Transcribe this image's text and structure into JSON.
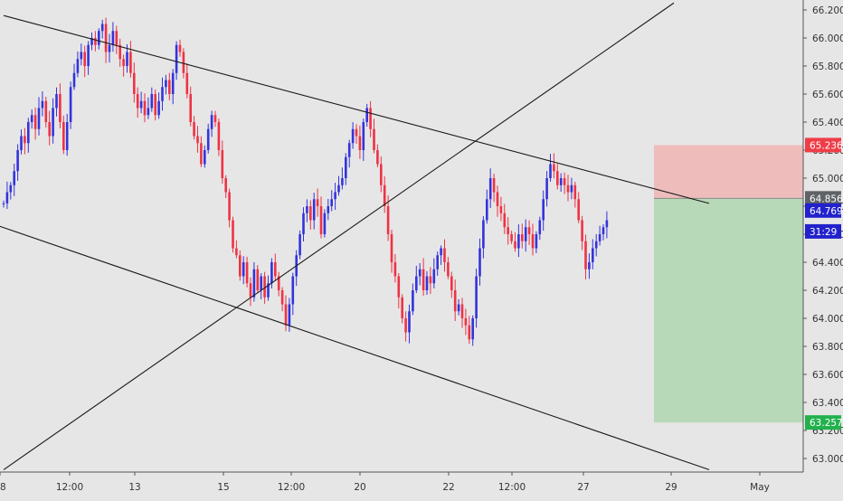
{
  "chart_data": {
    "type": "candlestick",
    "title": "",
    "xlabel": "",
    "ylabel": "",
    "ylim": [
      62.9,
      66.25
    ],
    "y_ticks": [
      "66.200",
      "66.000",
      "65.800",
      "65.600",
      "65.400",
      "65.200",
      "65.000",
      "64.800",
      "64.600",
      "64.400",
      "64.200",
      "64.000",
      "63.800",
      "63.600",
      "63.400",
      "63.200",
      "63.000"
    ],
    "x_ticks": [
      "8",
      "12:00",
      "13",
      "15",
      "12:00",
      "20",
      "22",
      "12:00",
      "27",
      "29",
      "May"
    ],
    "up_color": "#3333dd",
    "down_color": "#ee3344",
    "trendlines": [
      {
        "name": "upper-channel",
        "from": {
          "bar": 0,
          "price": 66.16
        },
        "to": {
          "bar": 200,
          "price": 64.82
        }
      },
      {
        "name": "lower-channel",
        "from": {
          "bar": -20,
          "price": 64.82
        },
        "to": {
          "bar": 200,
          "price": 62.92
        }
      },
      {
        "name": "rising-trend",
        "from": {
          "bar": 0,
          "price": 62.92
        },
        "to": {
          "bar": 190,
          "price": 66.25
        }
      }
    ],
    "trade_zones": {
      "entry": 64.856,
      "stop": 65.236,
      "target": 63.257,
      "stop_color": "#efbcbc",
      "target_color": "#b8d9b8"
    },
    "price_labels": [
      {
        "name": "stop-price",
        "text": "65.236",
        "value": 65.236,
        "bg": "#ef3d47",
        "fg": "#ffffff"
      },
      {
        "name": "entry-price",
        "text": "64.856",
        "value": 64.856,
        "bg": "#5f6266",
        "fg": "#ffffff"
      },
      {
        "name": "last-price",
        "text": "64.769",
        "value": 64.769,
        "bg": "#2222cc",
        "fg": "#ffffff"
      },
      {
        "name": "countdown",
        "text": "31:29",
        "value": 64.62,
        "bg": "#2222cc",
        "fg": "#ffffff"
      },
      {
        "name": "target-price",
        "text": "63.257",
        "value": 63.257,
        "bg": "#23b14d",
        "fg": "#ffffff"
      }
    ],
    "closes": [
      64.82,
      64.9,
      64.95,
      65.05,
      65.2,
      65.3,
      65.25,
      65.4,
      65.45,
      65.35,
      65.5,
      65.55,
      65.4,
      65.3,
      65.5,
      65.6,
      65.4,
      65.2,
      65.4,
      65.65,
      65.75,
      65.85,
      65.9,
      65.8,
      65.95,
      66.0,
      65.95,
      66.05,
      66.1,
      65.9,
      65.95,
      66.05,
      65.95,
      65.85,
      65.8,
      65.9,
      65.75,
      65.6,
      65.5,
      65.55,
      65.45,
      65.5,
      65.6,
      65.45,
      65.55,
      65.65,
      65.7,
      65.6,
      65.75,
      65.95,
      65.9,
      65.75,
      65.6,
      65.4,
      65.3,
      65.25,
      65.1,
      65.2,
      65.35,
      65.45,
      65.4,
      65.2,
      65.0,
      64.9,
      64.7,
      64.5,
      64.45,
      64.3,
      64.4,
      64.25,
      64.15,
      64.35,
      64.2,
      64.3,
      64.15,
      64.25,
      64.4,
      64.3,
      64.2,
      64.1,
      63.95,
      64.1,
      64.3,
      64.45,
      64.6,
      64.75,
      64.8,
      64.7,
      64.85,
      64.8,
      64.6,
      64.75,
      64.8,
      64.85,
      64.9,
      64.95,
      65.0,
      65.15,
      65.25,
      65.35,
      65.3,
      65.2,
      65.4,
      65.5,
      65.35,
      65.2,
      65.1,
      64.95,
      64.8,
      64.6,
      64.4,
      64.3,
      64.15,
      64.0,
      63.9,
      64.05,
      64.2,
      64.3,
      64.35,
      64.2,
      64.3,
      64.25,
      64.35,
      64.45,
      64.5,
      64.4,
      64.3,
      64.2,
      64.05,
      64.1,
      64.0,
      63.95,
      63.85,
      64.0,
      64.3,
      64.5,
      64.7,
      64.85,
      65.0,
      64.9,
      64.8,
      64.75,
      64.65,
      64.6,
      64.55,
      64.5,
      64.6,
      64.55,
      64.65,
      64.6,
      64.5,
      64.6,
      64.7,
      64.85,
      65.0,
      65.1,
      65.05,
      64.95,
      65.0,
      64.95,
      64.9,
      64.95,
      64.85,
      64.7,
      64.55,
      64.35,
      64.4,
      64.5,
      64.55,
      64.6,
      64.65,
      64.7
    ]
  }
}
